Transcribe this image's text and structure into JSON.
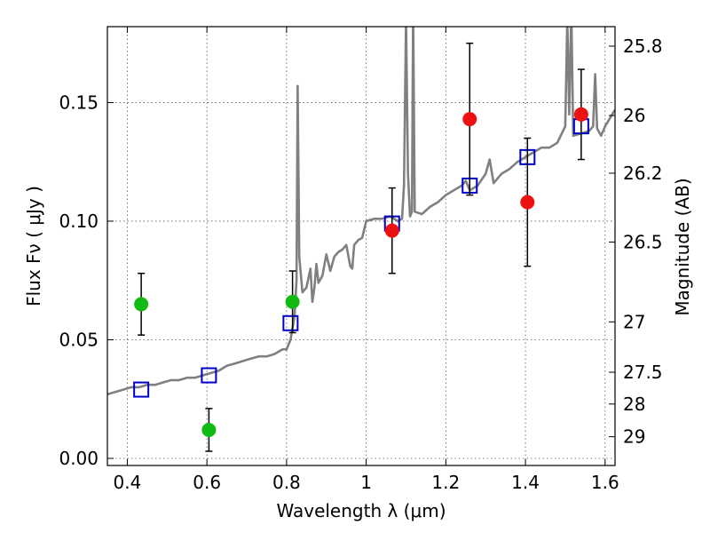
{
  "chart_data": {
    "type": "scatter",
    "xlabel": "Wavelength  λ (μm)",
    "ylabel": "Flux  Fν  ( μJy )",
    "y2label": "Magnitude (AB)",
    "xlim": [
      0.35,
      1.625
    ],
    "ylim": [
      -0.003,
      0.182
    ],
    "grid": true,
    "x_ticks": [
      0.4,
      0.6,
      0.8,
      1.0,
      1.2,
      1.4,
      1.6
    ],
    "x_tick_labels": [
      "0.4",
      "0.6",
      "0.8",
      "1",
      "1.2",
      "1.4",
      "1.6"
    ],
    "y_ticks": [
      0.0,
      0.05,
      0.1,
      0.15
    ],
    "y_tick_labels": [
      "0.00",
      "0.05",
      "0.10",
      "0.15"
    ],
    "magnitude_ticks": [
      "25.8",
      "26",
      "26.2",
      "26.5",
      "27",
      "27.5",
      "28",
      "29"
    ],
    "colors": {
      "model": "#808080",
      "model_bands": "#0000cc",
      "green_points": "#11bb11",
      "red_points": "#ee1111",
      "error_bars": "#000000"
    },
    "series": [
      {
        "kind": "line",
        "points": [
          [
            0.35,
            0.027
          ],
          [
            0.37,
            0.028
          ],
          [
            0.39,
            0.029
          ],
          [
            0.41,
            0.03
          ],
          [
            0.43,
            0.03
          ],
          [
            0.45,
            0.031
          ],
          [
            0.47,
            0.031
          ],
          [
            0.49,
            0.032
          ],
          [
            0.51,
            0.033
          ],
          [
            0.53,
            0.033
          ],
          [
            0.55,
            0.034
          ],
          [
            0.57,
            0.034
          ],
          [
            0.59,
            0.035
          ],
          [
            0.61,
            0.036
          ],
          [
            0.63,
            0.037
          ],
          [
            0.65,
            0.039
          ],
          [
            0.67,
            0.04
          ],
          [
            0.69,
            0.041
          ],
          [
            0.71,
            0.042
          ],
          [
            0.73,
            0.043
          ],
          [
            0.75,
            0.043
          ],
          [
            0.77,
            0.044
          ],
          [
            0.79,
            0.046
          ],
          [
            0.8,
            0.046
          ],
          [
            0.81,
            0.05
          ],
          [
            0.82,
            0.06
          ],
          [
            0.825,
            0.075
          ],
          [
            0.828,
            0.157
          ],
          [
            0.832,
            0.085
          ],
          [
            0.84,
            0.07
          ],
          [
            0.85,
            0.072
          ],
          [
            0.86,
            0.08
          ],
          [
            0.865,
            0.066
          ],
          [
            0.87,
            0.072
          ],
          [
            0.875,
            0.082
          ],
          [
            0.88,
            0.074
          ],
          [
            0.89,
            0.077
          ],
          [
            0.9,
            0.086
          ],
          [
            0.91,
            0.079
          ],
          [
            0.92,
            0.085
          ],
          [
            0.93,
            0.087
          ],
          [
            0.94,
            0.088
          ],
          [
            0.95,
            0.09
          ],
          [
            0.96,
            0.081
          ],
          [
            0.965,
            0.08
          ],
          [
            0.97,
            0.09
          ],
          [
            0.98,
            0.092
          ],
          [
            0.99,
            0.093
          ],
          [
            1.0,
            0.1
          ],
          [
            1.02,
            0.101
          ],
          [
            1.04,
            0.101
          ],
          [
            1.06,
            0.102
          ],
          [
            1.08,
            0.1
          ],
          [
            1.09,
            0.101
          ],
          [
            1.095,
            0.115
          ],
          [
            1.1,
            0.185
          ],
          [
            1.105,
            0.12
          ],
          [
            1.11,
            0.102
          ],
          [
            1.115,
            0.104
          ],
          [
            1.118,
            0.19
          ],
          [
            1.122,
            0.104
          ],
          [
            1.14,
            0.103
          ],
          [
            1.16,
            0.106
          ],
          [
            1.18,
            0.108
          ],
          [
            1.2,
            0.111
          ],
          [
            1.22,
            0.113
          ],
          [
            1.24,
            0.115
          ],
          [
            1.25,
            0.117
          ],
          [
            1.26,
            0.113
          ],
          [
            1.28,
            0.115
          ],
          [
            1.3,
            0.12
          ],
          [
            1.31,
            0.126
          ],
          [
            1.32,
            0.116
          ],
          [
            1.34,
            0.12
          ],
          [
            1.36,
            0.122
          ],
          [
            1.38,
            0.125
          ],
          [
            1.4,
            0.127
          ],
          [
            1.42,
            0.129
          ],
          [
            1.44,
            0.131
          ],
          [
            1.46,
            0.131
          ],
          [
            1.48,
            0.133
          ],
          [
            1.5,
            0.14
          ],
          [
            1.505,
            0.185
          ],
          [
            1.51,
            0.145
          ],
          [
            1.515,
            0.19
          ],
          [
            1.52,
            0.136
          ],
          [
            1.54,
            0.137
          ],
          [
            1.56,
            0.138
          ],
          [
            1.57,
            0.14
          ],
          [
            1.575,
            0.162
          ],
          [
            1.58,
            0.139
          ],
          [
            1.59,
            0.136
          ],
          [
            1.6,
            0.14
          ],
          [
            1.625,
            0.147
          ]
        ]
      },
      {
        "kind": "square_markers",
        "x": [
          0.435,
          0.605,
          0.81,
          1.065,
          1.26,
          1.405,
          1.54
        ],
        "y": [
          0.029,
          0.035,
          0.057,
          0.099,
          0.115,
          0.127,
          0.14
        ]
      },
      {
        "kind": "green_points",
        "x": [
          0.435,
          0.605,
          0.815
        ],
        "y": [
          0.065,
          0.012,
          0.066
        ],
        "err": [
          0.013,
          0.009,
          0.013
        ]
      },
      {
        "kind": "red_points",
        "x": [
          1.065,
          1.26,
          1.405,
          1.54
        ],
        "y": [
          0.096,
          0.143,
          0.108,
          0.145
        ],
        "err": [
          0.018,
          0.032,
          0.027,
          0.019
        ]
      }
    ]
  }
}
